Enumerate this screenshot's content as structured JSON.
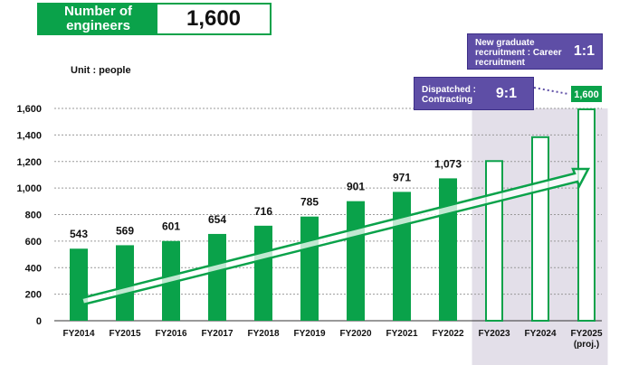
{
  "header": {
    "label": "Number of engineers",
    "value": "1,600"
  },
  "unit": "Unit : people",
  "notes": {
    "new_grad_label": "New graduate recruitment : Career recruitment",
    "new_grad_ratio": "1:1",
    "dispatched_label": "Dispatched : Contracting",
    "dispatched_ratio": "9:1"
  },
  "colors": {
    "actual": "#0aa24a",
    "projected_fill": "#ffffff",
    "projected_outline": "#0aa24a",
    "projection_band": "#e3dfe9",
    "note": "#5e4ea6"
  },
  "chart_data": {
    "type": "bar",
    "title": "",
    "xlabel": "",
    "ylabel": "",
    "ylim": [
      0,
      1600
    ],
    "yticks": [
      "0",
      "200",
      "400",
      "600",
      "800",
      "1,000",
      "1,200",
      "1,400",
      "1,600"
    ],
    "grid": true,
    "categories": [
      "FY2014",
      "FY2015",
      "FY2016",
      "FY2017",
      "FY2018",
      "FY2019",
      "FY2020",
      "FY2021",
      "FY2022",
      "FY2023",
      "FY2024",
      "FY2025"
    ],
    "category_sublabels": [
      "",
      "",
      "",
      "",
      "",
      "",
      "",
      "",
      "",
      "",
      "",
      "(proj.)"
    ],
    "values": [
      543,
      569,
      601,
      654,
      716,
      785,
      901,
      971,
      1073,
      1210,
      1390,
      1600
    ],
    "labels": [
      "543",
      "569",
      "601",
      "654",
      "716",
      "785",
      "901",
      "971",
      "1,073",
      "",
      "",
      "1,600"
    ],
    "projected": [
      false,
      false,
      false,
      false,
      false,
      false,
      false,
      false,
      false,
      true,
      true,
      true
    ],
    "trend_arrow": true
  }
}
